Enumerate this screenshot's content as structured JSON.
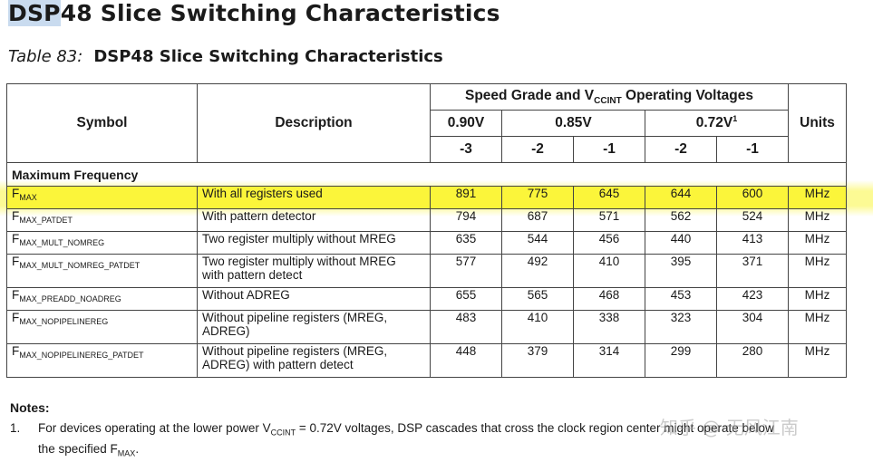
{
  "title_highlight": "DSP",
  "title_rest": "48 Slice Switching Characteristics",
  "caption_label": "Table 83:",
  "caption_title": "DSP48 Slice Switching Characteristics",
  "headers": {
    "symbol": "Symbol",
    "description": "Description",
    "speed_grade_prefix": "Speed Grade and V",
    "speed_grade_sub": "CCINT",
    "speed_grade_suffix": " Operating Voltages",
    "units": "Units",
    "voltages": [
      "0.90V",
      "0.85V",
      "0.72V"
    ],
    "voltage_footnote": "1",
    "grades": [
      "-3",
      "-2",
      "-1",
      "-2",
      "-1"
    ]
  },
  "section": "Maximum Frequency",
  "rows": [
    {
      "sym": "F",
      "sub": "MAX",
      "desc": "With all registers used",
      "vals": [
        "891",
        "775",
        "645",
        "644",
        "600"
      ],
      "unit": "MHz"
    },
    {
      "sym": "F",
      "sub": "MAX_PATDET",
      "desc": "With pattern detector",
      "vals": [
        "794",
        "687",
        "571",
        "562",
        "524"
      ],
      "unit": "MHz"
    },
    {
      "sym": "F",
      "sub": "MAX_MULT_NOMREG",
      "desc": "Two register multiply without MREG",
      "vals": [
        "635",
        "544",
        "456",
        "440",
        "413"
      ],
      "unit": "MHz"
    },
    {
      "sym": "F",
      "sub": "MAX_MULT_NOMREG_PATDET",
      "desc": "Two register multiply without MREG",
      "desc2": "with pattern detect",
      "vals": [
        "577",
        "492",
        "410",
        "395",
        "371"
      ],
      "unit": "MHz"
    },
    {
      "sym": "F",
      "sub": "MAX_PREADD_NOADREG",
      "desc": "Without ADREG",
      "vals": [
        "655",
        "565",
        "468",
        "453",
        "423"
      ],
      "unit": "MHz"
    },
    {
      "sym": "F",
      "sub": "MAX_NOPIPELINEREG",
      "desc": "Without pipeline registers (MREG,",
      "desc2": "ADREG)",
      "vals": [
        "483",
        "410",
        "338",
        "323",
        "304"
      ],
      "unit": "MHz"
    },
    {
      "sym": "F",
      "sub": "MAX_NOPIPELINEREG_PATDET",
      "desc": "Without pipeline registers (MREG,",
      "desc2": "ADREG) with pattern detect",
      "vals": [
        "448",
        "379",
        "314",
        "299",
        "280"
      ],
      "unit": "MHz"
    }
  ],
  "notes": {
    "title": "Notes:",
    "num": "1.",
    "line1_a": "For devices operating at the lower power V",
    "line1_sub": "CCINT",
    "line1_b": " = 0.72V voltages, DSP cascades that cross the clock region center might operate below",
    "line2_a": "the specified F",
    "line2_sub": "MAX",
    "line2_b": "."
  },
  "watermark": "知乎 @ 无风江南",
  "colors": {
    "highlight": "#fbf53a",
    "section_rule": "#8b1a35",
    "title_highlight": "#c9dbef"
  }
}
